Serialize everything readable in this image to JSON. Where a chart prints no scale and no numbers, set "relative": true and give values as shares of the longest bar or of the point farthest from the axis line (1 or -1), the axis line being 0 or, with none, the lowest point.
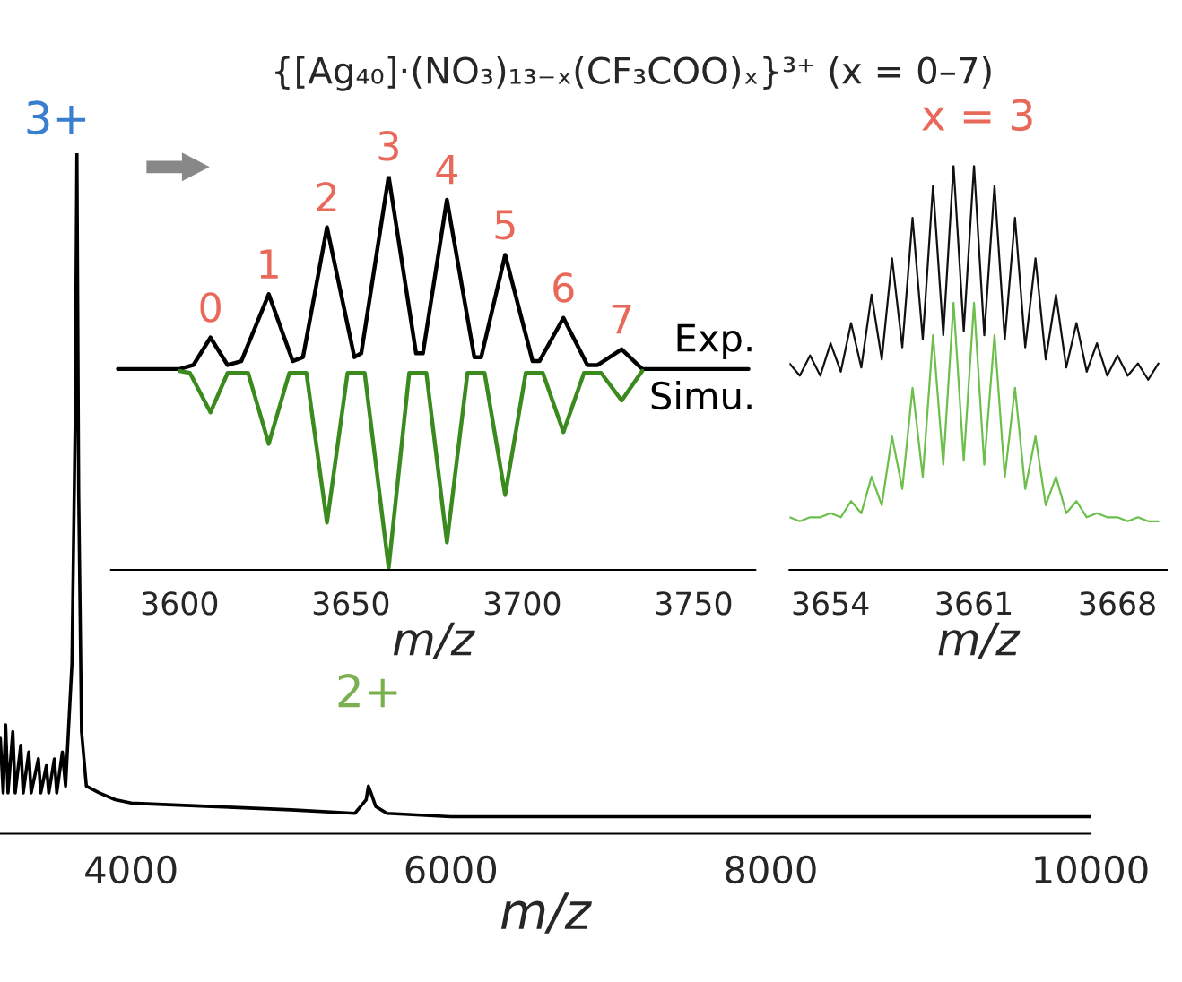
{
  "chart_data": [
    {
      "type": "line",
      "title": "{[Ag₄₀]·(NO₃)₁₃₋ₓ(CF₃COO)ₓ}³⁺ (x = 0–7)",
      "xlabel": "m/z",
      "relative": true,
      "tick_labels": "x",
      "xlim": [
        3180,
        10000
      ],
      "xticks": [
        4000,
        6000,
        8000,
        10000
      ],
      "series": [
        {
          "color": "#000000",
          "x": [
            3182,
            3200,
            3215,
            3230,
            3260,
            3275,
            3310,
            3325,
            3360,
            3375,
            3420,
            3435,
            3470,
            3485,
            3520,
            3535,
            3570,
            3590,
            3630,
            3650,
            3661,
            3672,
            3690,
            3720,
            3800,
            3900,
            4000,
            4500,
            5000,
            5400,
            5470,
            5484,
            5500,
            5530,
            5600,
            6000,
            7000,
            8000,
            9000,
            10000
          ],
          "values": [
            0.14,
            0.06,
            0.16,
            0.06,
            0.15,
            0.06,
            0.13,
            0.06,
            0.12,
            0.06,
            0.11,
            0.06,
            0.1,
            0.06,
            0.11,
            0.06,
            0.12,
            0.07,
            0.25,
            0.6,
            1.0,
            0.5,
            0.15,
            0.07,
            0.06,
            0.05,
            0.045,
            0.04,
            0.035,
            0.03,
            0.05,
            0.07,
            0.06,
            0.04,
            0.03,
            0.025,
            0.025,
            0.025,
            0.025,
            0.025
          ]
        }
      ],
      "annotations": [
        {
          "text": "3+",
          "x": 3661,
          "y": 1.0
        },
        {
          "text": "2+",
          "x": 5484,
          "y": 0.07
        }
      ]
    },
    {
      "type": "line",
      "xlabel": "m/z",
      "relative": true,
      "tick_labels": "x",
      "xlim": [
        3580,
        3768
      ],
      "xticks": [
        3600,
        3650,
        3700,
        3750
      ],
      "series": [
        {
          "color": "#000000",
          "x": [
            3582,
            3600,
            3604,
            3609,
            3614,
            3618,
            3626,
            3633,
            3636,
            3643,
            3651,
            3653,
            3661,
            3669,
            3671,
            3678,
            3686,
            3688,
            3695,
            3703,
            3705,
            3712,
            3719,
            3722,
            3729,
            3735,
            3766
          ],
          "values": [
            0.51,
            0.51,
            0.52,
            0.59,
            0.52,
            0.53,
            0.7,
            0.53,
            0.54,
            0.87,
            0.54,
            0.55,
            1.0,
            0.55,
            0.55,
            0.94,
            0.54,
            0.54,
            0.8,
            0.53,
            0.53,
            0.64,
            0.52,
            0.52,
            0.56,
            0.51,
            0.51
          ]
        },
        {
          "color": "#3a8a1e",
          "x": [
            3600,
            3603,
            3609,
            3614,
            3620,
            3626,
            3632,
            3637,
            3643,
            3649,
            3654,
            3661,
            3667,
            3672,
            3678,
            3684,
            3689,
            3695,
            3701,
            3706,
            3712,
            3718,
            3723,
            3729,
            3735
          ],
          "values": [
            0.505,
            0.5,
            0.4,
            0.5,
            0.5,
            0.32,
            0.5,
            0.5,
            0.12,
            0.5,
            0.5,
            0.005,
            0.5,
            0.5,
            0.07,
            0.5,
            0.5,
            0.19,
            0.5,
            0.5,
            0.35,
            0.5,
            0.5,
            0.43,
            0.505
          ]
        }
      ],
      "annotations": [
        {
          "text": "0",
          "x": 3609,
          "y": 0.59
        },
        {
          "text": "1",
          "x": 3626,
          "y": 0.7
        },
        {
          "text": "2",
          "x": 3643,
          "y": 0.87
        },
        {
          "text": "3",
          "x": 3661,
          "y": 1.0
        },
        {
          "text": "4",
          "x": 3678,
          "y": 0.94
        },
        {
          "text": "5",
          "x": 3695,
          "y": 0.8
        },
        {
          "text": "6",
          "x": 3712,
          "y": 0.64
        },
        {
          "text": "7",
          "x": 3729,
          "y": 0.56
        },
        "Exp.",
        "Simu."
      ]
    },
    {
      "type": "line",
      "title": "x = 3",
      "xlabel": "m/z",
      "relative": true,
      "tick_labels": "x",
      "xlim": [
        3652,
        3670.4
      ],
      "xticks": [
        3654,
        3661,
        3668
      ],
      "series": [
        {
          "color": "#111111",
          "x": [
            3652,
            3652.5,
            3653,
            3653.5,
            3654,
            3654.5,
            3655,
            3655.5,
            3656,
            3656.5,
            3657,
            3657.5,
            3658,
            3658.5,
            3659,
            3659.5,
            3660,
            3660.5,
            3661,
            3661.5,
            3662,
            3662.5,
            3663,
            3663.5,
            3664,
            3664.5,
            3665,
            3665.5,
            3666,
            3666.5,
            3667,
            3667.5,
            3668,
            3668.5,
            3669,
            3669.5,
            3670
          ],
          "values": [
            0.51,
            0.48,
            0.53,
            0.48,
            0.56,
            0.49,
            0.61,
            0.5,
            0.68,
            0.52,
            0.77,
            0.55,
            0.87,
            0.57,
            0.95,
            0.58,
            1.0,
            0.59,
            1.0,
            0.58,
            0.95,
            0.57,
            0.87,
            0.55,
            0.77,
            0.52,
            0.68,
            0.5,
            0.61,
            0.49,
            0.56,
            0.48,
            0.53,
            0.48,
            0.51,
            0.47,
            0.51
          ]
        },
        {
          "color": "#6cbf4a",
          "x": [
            3652,
            3652.5,
            3653,
            3653.5,
            3654,
            3654.5,
            3655,
            3655.5,
            3656,
            3656.5,
            3657,
            3657.5,
            3658,
            3658.5,
            3659,
            3659.5,
            3660,
            3660.5,
            3661,
            3661.5,
            3662,
            3662.5,
            3663,
            3663.5,
            3664,
            3664.5,
            3665,
            3665.5,
            3666,
            3666.5,
            3667,
            3667.5,
            3668,
            3668.5,
            3669,
            3669.5,
            3670
          ],
          "values": [
            0.13,
            0.12,
            0.13,
            0.13,
            0.14,
            0.13,
            0.17,
            0.14,
            0.23,
            0.16,
            0.33,
            0.2,
            0.45,
            0.23,
            0.58,
            0.26,
            0.66,
            0.27,
            0.66,
            0.26,
            0.58,
            0.23,
            0.45,
            0.2,
            0.33,
            0.16,
            0.23,
            0.14,
            0.17,
            0.13,
            0.14,
            0.13,
            0.13,
            0.12,
            0.13,
            0.12,
            0.12
          ]
        }
      ]
    }
  ]
}
